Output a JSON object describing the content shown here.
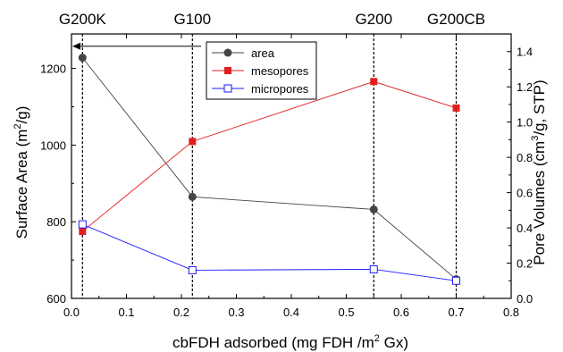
{
  "chart_data": {
    "type": "line",
    "xlabel": "cbFDH adsorbed (mg FDH /m",
    "xlabel_sup": "2",
    "xlabel_tail": " Gx)",
    "ylabel_left": "Surface Area (m",
    "ylabel_left_sup": "2",
    "ylabel_left_tail": "/g)",
    "ylabel_right": "Pore Volumes (cm",
    "ylabel_right_sup": "3",
    "ylabel_right_tail": "/g, STP)",
    "xlim": [
      0.0,
      0.8
    ],
    "ylim_left": [
      600,
      1290
    ],
    "ylim_right": [
      0.0,
      1.5
    ],
    "x_ticks": [
      "0.0",
      "0.1",
      "0.2",
      "0.3",
      "0.4",
      "0.5",
      "0.6",
      "0.7",
      "0.8"
    ],
    "y_left_ticks": [
      "600",
      "800",
      "1000",
      "1200"
    ],
    "y_right_ticks": [
      "0.0",
      "0.2",
      "0.4",
      "0.6",
      "0.8",
      "1.0",
      "1.2",
      "1.4"
    ],
    "samples": [
      {
        "label": "G200K",
        "x": 0.02
      },
      {
        "label": "G100",
        "x": 0.22
      },
      {
        "label": "G200",
        "x": 0.55
      },
      {
        "label": "G200CB",
        "x": 0.7
      }
    ],
    "series": [
      {
        "name": "area",
        "axis": "left",
        "color": "#444444",
        "marker": "circle",
        "x": [
          0.02,
          0.22,
          0.55,
          0.7
        ],
        "values": [
          1228,
          865,
          832,
          650
        ]
      },
      {
        "name": "mesopores",
        "axis": "right",
        "color": "#e02020",
        "marker": "square",
        "x": [
          0.02,
          0.22,
          0.55,
          0.7
        ],
        "values": [
          0.38,
          0.89,
          1.23,
          1.08
        ]
      },
      {
        "name": "micropores",
        "axis": "right",
        "color": "#1a1aff",
        "marker": "open-square",
        "x": [
          0.02,
          0.22,
          0.55,
          0.7
        ],
        "values": [
          0.42,
          0.16,
          0.165,
          0.1
        ]
      }
    ],
    "grid": false,
    "legend_position": "top-center"
  }
}
